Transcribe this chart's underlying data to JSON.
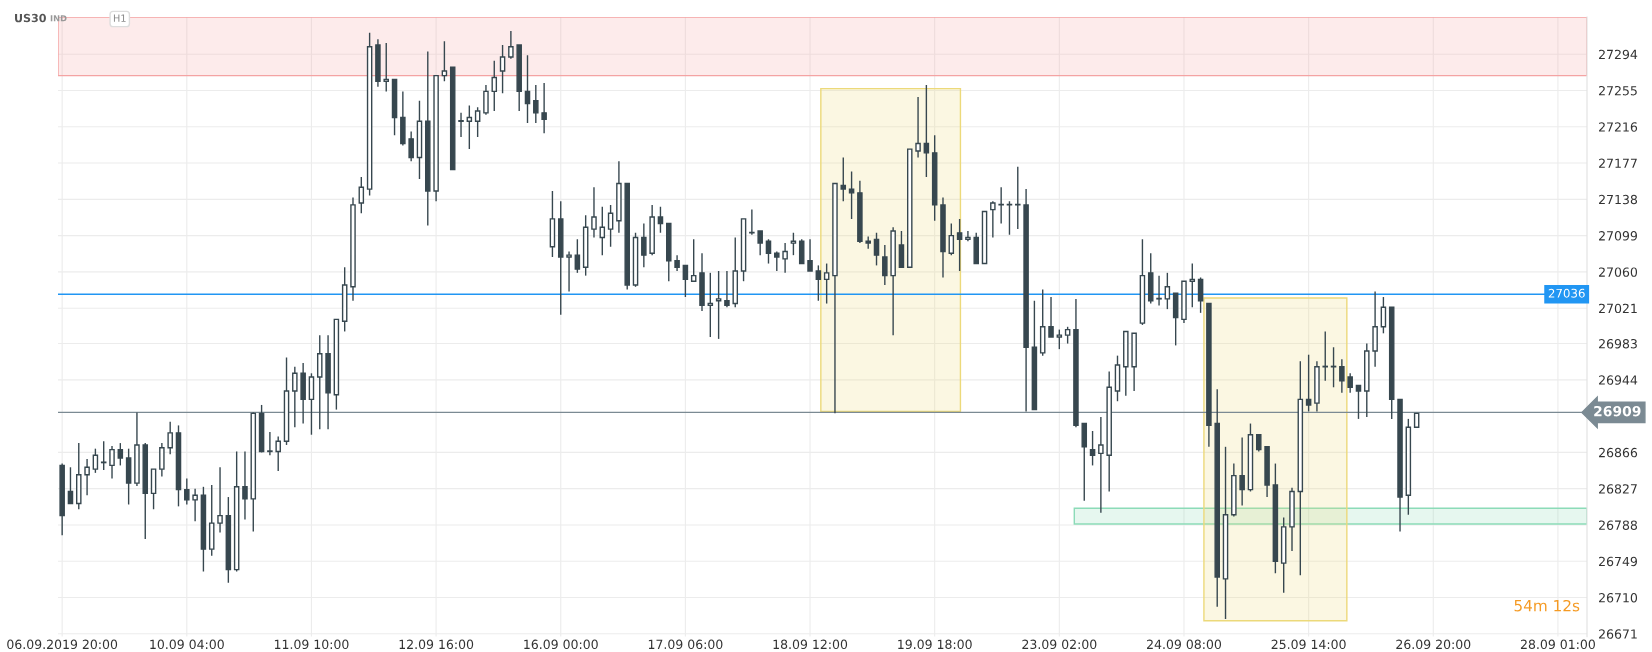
{
  "chart_data": {
    "type": "candlestick",
    "title": "US30",
    "annotations": [
      "IND",
      "H1",
      "54m 12s"
    ],
    "color": "#37474f",
    "categories": [
      "06.09.2019 20:00",
      null,
      null,
      null,
      null,
      null,
      null,
      null,
      null,
      null,
      null,
      null,
      null,
      null,
      null,
      "10.09 04:00",
      null,
      null,
      null,
      null,
      null,
      null,
      null,
      null,
      null,
      null,
      null,
      null,
      null,
      null,
      "11.09 10:00",
      null,
      null,
      null,
      null,
      null,
      null,
      null,
      null,
      null,
      null,
      null,
      null,
      null,
      null,
      "12.09 16:00",
      null,
      null,
      null,
      null,
      null,
      null,
      null,
      null,
      null,
      null,
      null,
      null,
      null,
      null,
      "16.09 00:00",
      null,
      null,
      null,
      null,
      null,
      null,
      null,
      null,
      null,
      null,
      null,
      null,
      null,
      null,
      "17.09 06:00",
      null,
      null,
      null,
      null,
      null,
      null,
      null,
      null,
      null,
      null,
      null,
      null,
      null,
      null,
      "18.09 12:00",
      null,
      null,
      null,
      null,
      null,
      null,
      null,
      null,
      null,
      null,
      null,
      null,
      null,
      null,
      "19.09 18:00",
      null,
      null,
      null,
      null,
      null,
      null,
      null,
      null,
      null,
      null,
      null,
      null,
      null,
      null,
      "23.09 02:00",
      null,
      null,
      null,
      null,
      null,
      null,
      null,
      null,
      null,
      null,
      null,
      null,
      null,
      null,
      "24.09 08:00",
      null,
      null,
      null,
      null,
      null,
      null,
      null,
      null,
      null,
      null,
      null,
      null,
      null,
      null,
      "25.09 14:00",
      null,
      null,
      null,
      null,
      null,
      null,
      null,
      null,
      null,
      null,
      null,
      null,
      null,
      null,
      "26.09 20:00",
      null,
      null,
      null,
      null,
      null,
      null,
      null,
      null,
      null,
      null,
      null,
      null,
      null,
      null,
      "28.09 01:00",
      null,
      null,
      null
    ],
    "ohlc": [
      [
        26852,
        26854,
        26777,
        26798
      ],
      [
        26824,
        26850,
        26811,
        26811
      ],
      [
        26811,
        26876,
        26805,
        26842
      ],
      [
        26842,
        26859,
        26820,
        26850
      ],
      [
        26848,
        26870,
        26844,
        26863
      ],
      [
        26855,
        26878,
        26847,
        26855
      ],
      [
        26852,
        26873,
        26838,
        26869
      ],
      [
        26869,
        26876,
        26852,
        26860
      ],
      [
        26860,
        26870,
        26810,
        26833
      ],
      [
        26833,
        26909,
        26830,
        26874
      ],
      [
        26874,
        26876,
        26773,
        26822
      ],
      [
        26822,
        26848,
        26805,
        26848
      ],
      [
        26848,
        26876,
        26840,
        26871
      ],
      [
        26871,
        26899,
        26864,
        26887
      ],
      [
        26887,
        26895,
        26808,
        26826
      ],
      [
        26826,
        26838,
        26810,
        26815
      ],
      [
        26815,
        26827,
        26792,
        26820
      ],
      [
        26820,
        26829,
        26738,
        26762
      ],
      [
        26762,
        26831,
        26755,
        26790
      ],
      [
        26790,
        26850,
        26780,
        26798
      ],
      [
        26798,
        26818,
        26726,
        26740
      ],
      [
        26740,
        26867,
        26738,
        26829
      ],
      [
        26829,
        26867,
        26794,
        26816
      ],
      [
        26816,
        26909,
        26781,
        26908
      ],
      [
        26908,
        26917,
        26866,
        26867
      ],
      [
        26867,
        26888,
        26863,
        26867
      ],
      [
        26867,
        26883,
        26846,
        26878
      ],
      [
        26878,
        26968,
        26874,
        26932
      ],
      [
        26932,
        26958,
        26893,
        26951
      ],
      [
        26951,
        26962,
        26897,
        26923
      ],
      [
        26923,
        26951,
        26885,
        26947
      ],
      [
        26947,
        26992,
        26891,
        26972
      ],
      [
        26972,
        26992,
        26891,
        26930
      ],
      [
        26928,
        27009,
        26912,
        27009
      ],
      [
        27007,
        27065,
        26996,
        27046
      ],
      [
        27044,
        27140,
        27029,
        27132
      ],
      [
        27134,
        27162,
        27123,
        27151
      ],
      [
        27149,
        27317,
        27142,
        27302
      ],
      [
        27304,
        27310,
        27259,
        27265
      ],
      [
        27265,
        27306,
        27254,
        27267
      ],
      [
        27267,
        27267,
        27207,
        27226
      ],
      [
        27226,
        27254,
        27196,
        27198
      ],
      [
        27203,
        27211,
        27179,
        27183
      ],
      [
        27183,
        27244,
        27160,
        27222
      ],
      [
        27222,
        27297,
        27110,
        27147
      ],
      [
        27147,
        27271,
        27136,
        27271
      ],
      [
        27271,
        27308,
        27265,
        27276
      ],
      [
        27280,
        27280,
        27170,
        27170
      ],
      [
        27222,
        27231,
        27205,
        27222
      ],
      [
        27222,
        27239,
        27192,
        27226
      ],
      [
        27222,
        27237,
        27205,
        27233
      ],
      [
        27231,
        27261,
        27229,
        27254
      ],
      [
        27254,
        27287,
        27233,
        27269
      ],
      [
        27276,
        27304,
        27252,
        27291
      ],
      [
        27291,
        27319,
        27289,
        27302
      ],
      [
        27304,
        27304,
        27233,
        27254
      ],
      [
        27254,
        27293,
        27220,
        27241
      ],
      [
        27244,
        27261,
        27220,
        27231
      ],
      [
        27231,
        27263,
        27209,
        27224
      ],
      [
        27087,
        27147,
        27076,
        27117
      ],
      [
        27117,
        27136,
        27014,
        27076
      ],
      [
        27076,
        27082,
        27039,
        27078
      ],
      [
        27078,
        27095,
        27059,
        27063
      ],
      [
        27065,
        27121,
        27056,
        27108
      ],
      [
        27106,
        27151,
        27097,
        27119
      ],
      [
        27097,
        27130,
        27078,
        27108
      ],
      [
        27106,
        27132,
        27087,
        27123
      ],
      [
        27115,
        27179,
        27102,
        27155
      ],
      [
        27155,
        27155,
        27041,
        27046
      ],
      [
        27046,
        27102,
        27044,
        27097
      ],
      [
        27097,
        27112,
        27065,
        27078
      ],
      [
        27080,
        27132,
        27078,
        27119
      ],
      [
        27119,
        27130,
        27102,
        27112
      ],
      [
        27112,
        27112,
        27050,
        27072
      ],
      [
        27072,
        27078,
        27061,
        27065
      ],
      [
        27067,
        27067,
        27033,
        27052
      ],
      [
        27050,
        27095,
        27050,
        27056
      ],
      [
        27059,
        27080,
        27018,
        27024
      ],
      [
        27024,
        27059,
        26990,
        27026
      ],
      [
        27029,
        27061,
        26988,
        27031
      ],
      [
        27029,
        27061,
        27022,
        27024
      ],
      [
        27026,
        27097,
        27022,
        27061
      ],
      [
        27061,
        27117,
        27050,
        27117
      ],
      [
        27102,
        27127,
        27100,
        27102
      ],
      [
        27104,
        27104,
        27078,
        27091
      ],
      [
        27093,
        27095,
        27069,
        27080
      ],
      [
        27080,
        27082,
        27061,
        27076
      ],
      [
        27074,
        27091,
        27059,
        27082
      ],
      [
        27091,
        27102,
        27078,
        27093
      ],
      [
        27093,
        27095,
        27069,
        27069
      ],
      [
        27072,
        27095,
        27061,
        27061
      ],
      [
        27061,
        27067,
        27029,
        27052
      ],
      [
        27052,
        27069,
        27026,
        27059
      ],
      [
        27056,
        27155,
        26908,
        27155
      ],
      [
        27153,
        27183,
        27136,
        27149
      ],
      [
        27149,
        27168,
        27117,
        27145
      ],
      [
        27145,
        27158,
        27091,
        27093
      ],
      [
        27093,
        27098,
        27085,
        27091
      ],
      [
        27095,
        27102,
        27067,
        27078
      ],
      [
        27076,
        27089,
        27046,
        27056
      ],
      [
        27056,
        27108,
        26992,
        27104
      ],
      [
        27089,
        27104,
        27065,
        27065
      ],
      [
        27065,
        27192,
        27065,
        27192
      ],
      [
        27190,
        27248,
        27183,
        27198
      ],
      [
        27198,
        27261,
        27162,
        27188
      ],
      [
        27188,
        27207,
        27115,
        27132
      ],
      [
        27132,
        27140,
        27054,
        27082
      ],
      [
        27080,
        27112,
        27078,
        27099
      ],
      [
        27102,
        27117,
        27061,
        27095
      ],
      [
        27095,
        27104,
        27093,
        27097
      ],
      [
        27097,
        27102,
        27069,
        27069
      ],
      [
        27069,
        27125,
        27069,
        27125
      ],
      [
        27127,
        27136,
        27097,
        27134
      ],
      [
        27132,
        27151,
        27112,
        27132
      ],
      [
        27132,
        27136,
        27100,
        27132
      ],
      [
        27132,
        27173,
        27106,
        27132
      ],
      [
        27132,
        27149,
        26910,
        26979
      ],
      [
        26979,
        27029,
        26912,
        26912
      ],
      [
        26973,
        27041,
        26970,
        27001
      ],
      [
        27001,
        27033,
        26990,
        26990
      ],
      [
        26990,
        26998,
        26977,
        26992
      ],
      [
        26992,
        27001,
        26983,
        26998
      ],
      [
        26998,
        27031,
        26893,
        26895
      ],
      [
        26897,
        26897,
        26814,
        26872
      ],
      [
        26869,
        26889,
        26852,
        26863
      ],
      [
        26865,
        26904,
        26801,
        26874
      ],
      [
        26863,
        26953,
        26824,
        26936
      ],
      [
        26932,
        26970,
        26921,
        26960
      ],
      [
        26958,
        26996,
        26927,
        26996
      ],
      [
        26958,
        26994,
        26932,
        26994
      ],
      [
        27005,
        27095,
        27003,
        27056
      ],
      [
        27059,
        27080,
        27026,
        27029
      ],
      [
        27031,
        27056,
        27024,
        27031
      ],
      [
        27031,
        27059,
        27020,
        27044
      ],
      [
        27037,
        27037,
        26981,
        27011
      ],
      [
        27009,
        27050,
        27005,
        27050
      ],
      [
        27050,
        27069,
        27022,
        27052
      ],
      [
        27052,
        27054,
        27016,
        27029
      ],
      [
        27026,
        27026,
        26872,
        26895
      ],
      [
        26897,
        26934,
        26700,
        26732
      ],
      [
        26730,
        26872,
        26687,
        26799
      ],
      [
        26799,
        26854,
        26797,
        26841
      ],
      [
        26841,
        26882,
        26809,
        26826
      ],
      [
        26826,
        26897,
        26824,
        26885
      ],
      [
        26885,
        26885,
        26867,
        26869
      ],
      [
        26872,
        26872,
        26818,
        26831
      ],
      [
        26831,
        26854,
        26736,
        26749
      ],
      [
        26747,
        26796,
        26715,
        26786
      ],
      [
        26786,
        26828,
        26760,
        26824
      ],
      [
        26824,
        26964,
        26734,
        26923
      ],
      [
        26923,
        26971,
        26910,
        26917
      ],
      [
        26919,
        26964,
        26910,
        26958
      ],
      [
        26958,
        26996,
        26943,
        26958
      ],
      [
        26958,
        26979,
        26936,
        26958
      ],
      [
        26958,
        26966,
        26930,
        26943
      ],
      [
        26947,
        26951,
        26930,
        26936
      ],
      [
        26938,
        26938,
        26902,
        26932
      ],
      [
        26932,
        26983,
        26904,
        26975
      ],
      [
        26975,
        27039,
        26958,
        27001
      ],
      [
        27001,
        27033,
        26994,
        27022
      ],
      [
        27022,
        27022,
        26902,
        26923
      ],
      [
        26923,
        26923,
        26781,
        26818
      ],
      [
        26820,
        26902,
        26799,
        26893
      ],
      [
        26893,
        26908,
        26893,
        26908
      ],
      null,
      null,
      null,
      null,
      null,
      null,
      null,
      null,
      null,
      null,
      null,
      null,
      null,
      null,
      null,
      null,
      null,
      null,
      null,
      null
    ],
    "ylim": [
      26668,
      27334
    ],
    "yticks": [
      26671,
      26710,
      26749,
      26788,
      26827,
      26866,
      26944,
      26983,
      27021,
      27060,
      27099,
      27138,
      27177,
      27216,
      27255,
      27294
    ],
    "grid": true,
    "bands": [
      {
        "axis": "y",
        "from": 27271,
        "to": 27334,
        "color": "#f4a3a3"
      },
      {
        "axis": "y",
        "from": 26789,
        "to": 26806,
        "color": "#8cdbb8"
      }
    ],
    "ref_lines": [
      {
        "axis": "y",
        "value": 27036,
        "label": "27036",
        "color": "#2196f3"
      },
      {
        "axis": "y",
        "value": 26909,
        "label": "26909",
        "color": "#7b8a93"
      }
    ]
  }
}
